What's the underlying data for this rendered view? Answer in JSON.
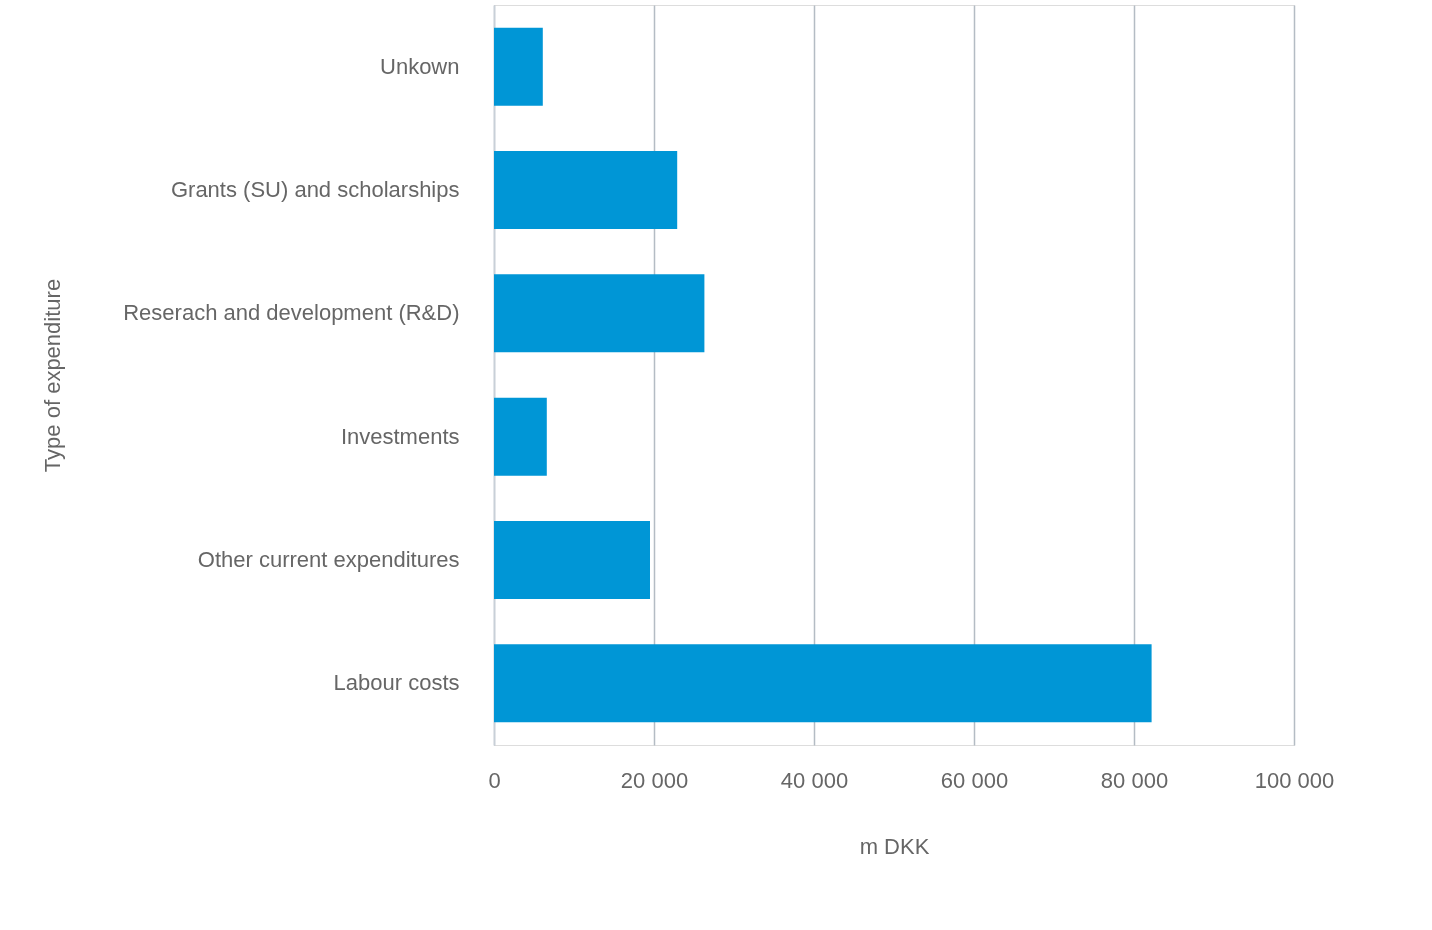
{
  "chart_data": {
    "type": "bar",
    "orientation": "horizontal",
    "xlabel": "m DKK",
    "ylabel": "Type of expenditure",
    "categories": [
      "Unkown",
      "Grants (SU) and scholarships",
      "Reserach and development (R&D)",
      "Investments",
      "Other current expenditures",
      "Labour costs"
    ],
    "values": [
      6100,
      22900,
      26300,
      6600,
      19500,
      82200
    ],
    "color": "#0096d6",
    "xlim": [
      0,
      100000
    ],
    "xticks": [
      0,
      {
        "value": 20000,
        "label": "20 000"
      },
      {
        "value": 40000,
        "label": "40 000"
      },
      {
        "value": 60000,
        "label": "60 000"
      },
      {
        "value": 80000,
        "label": "80 000"
      },
      {
        "value": 100000,
        "label": "100 000"
      }
    ],
    "grid": "x"
  }
}
